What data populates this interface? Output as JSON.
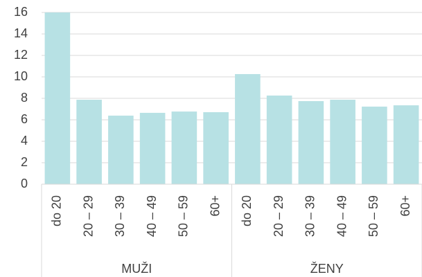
{
  "chart_data": {
    "type": "bar",
    "groups": [
      {
        "name": "MUŽI",
        "categories": [
          "do 20",
          "20 – 29",
          "30 – 39",
          "40 – 49",
          "50 – 59",
          "60+"
        ],
        "values": [
          16,
          7.87,
          6.39,
          6.65,
          6.77,
          6.71
        ]
      },
      {
        "name": "ŽENY",
        "categories": [
          "do 20",
          "20 – 29",
          "30 – 39",
          "40 – 49",
          "50 – 59",
          "60+"
        ],
        "values": [
          10.26,
          8.26,
          7.74,
          7.87,
          7.23,
          7.35
        ]
      }
    ],
    "color": "#b7e1e4",
    "ylim": [
      0,
      16
    ],
    "yticks": [
      0,
      2,
      4,
      6,
      8,
      10,
      12,
      14,
      16
    ],
    "grid": true
  }
}
